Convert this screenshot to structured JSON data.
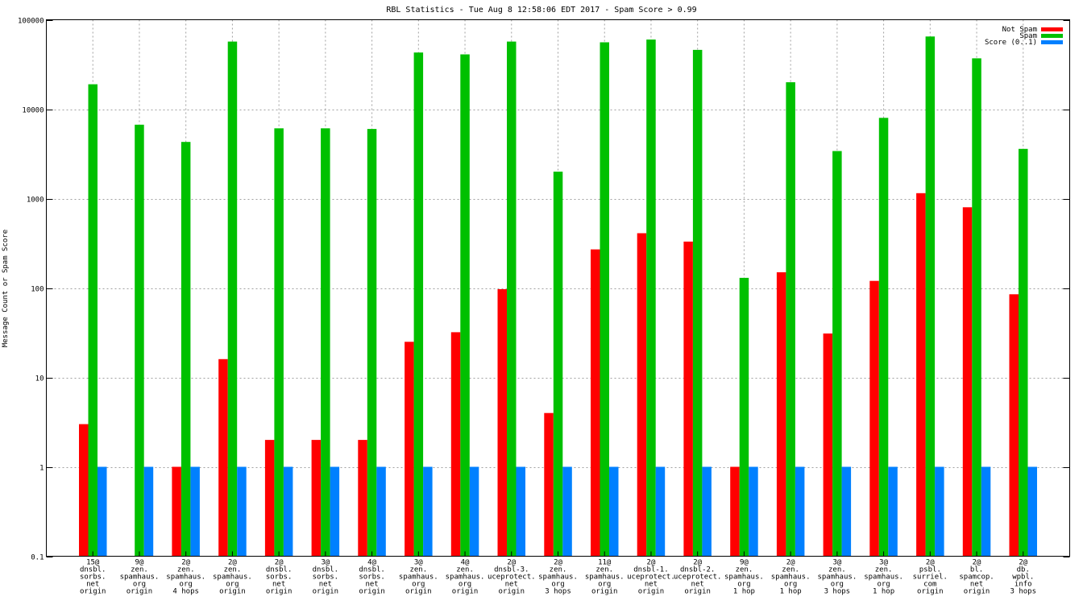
{
  "chart_data": {
    "type": "bar",
    "title": "RBL Statistics - Tue Aug  8 12:58:06 EDT 2017 - Spam Score > 0.99",
    "xlabel": "",
    "ylabel": "Message Count or Spam Score",
    "yscale": "log",
    "ylim": [
      0.1,
      100000
    ],
    "y_ticks": [
      "0.1",
      "1",
      "10",
      "100",
      "1000",
      "10000",
      "100000"
    ],
    "grid": true,
    "legend_position": "top-right",
    "categories": [
      [
        "15@",
        "dnsbl.",
        "sorbs.",
        "net",
        "origin"
      ],
      [
        "9@",
        "zen.",
        "spamhaus.",
        "org",
        "origin"
      ],
      [
        "2@",
        "zen.",
        "spamhaus.",
        "org",
        "4 hops"
      ],
      [
        "2@",
        "zen.",
        "spamhaus.",
        "org",
        "origin"
      ],
      [
        "2@",
        "dnsbl.",
        "sorbs.",
        "net",
        "origin"
      ],
      [
        "3@",
        "dnsbl.",
        "sorbs.",
        "net",
        "origin"
      ],
      [
        "4@",
        "dnsbl.",
        "sorbs.",
        "net",
        "origin"
      ],
      [
        "3@",
        "zen.",
        "spamhaus.",
        "org",
        "origin"
      ],
      [
        "4@",
        "zen.",
        "spamhaus.",
        "org",
        "origin"
      ],
      [
        "2@",
        "dnsbl-3.",
        "uceprotect.",
        "net",
        "origin"
      ],
      [
        "2@",
        "zen.",
        "spamhaus.",
        "org",
        "3 hops"
      ],
      [
        "11@",
        "zen.",
        "spamhaus.",
        "org",
        "origin"
      ],
      [
        "2@",
        "dnsbl-1.",
        "uceprotect.",
        "net",
        "origin"
      ],
      [
        "2@",
        "dnsbl-2.",
        "uceprotect.",
        "net",
        "origin"
      ],
      [
        "9@",
        "zen.",
        "spamhaus.",
        "org",
        "1 hop"
      ],
      [
        "2@",
        "zen.",
        "spamhaus.",
        "org",
        "1 hop"
      ],
      [
        "3@",
        "zen.",
        "spamhaus.",
        "org",
        "3 hops"
      ],
      [
        "3@",
        "zen.",
        "spamhaus.",
        "org",
        "1 hop"
      ],
      [
        "2@",
        "psbl.",
        "surriel.",
        "com",
        "origin"
      ],
      [
        "2@",
        "bl.",
        "spamcop.",
        "net",
        "origin"
      ],
      [
        "2@",
        "db.",
        "wpbl.",
        "info",
        "3 hops"
      ]
    ],
    "series": [
      {
        "name": "Not Spam",
        "color": "#ff0000",
        "values": [
          3,
          null,
          1,
          16,
          2,
          2,
          2,
          25,
          32,
          97,
          4,
          270,
          410,
          330,
          1,
          150,
          31,
          120,
          1150,
          800,
          85
        ]
      },
      {
        "name": "Spam",
        "color": "#00c000",
        "values": [
          19000,
          6700,
          4300,
          57000,
          6100,
          6100,
          6000,
          43000,
          41000,
          57000,
          2000,
          56000,
          60000,
          46000,
          130,
          20000,
          3400,
          8000,
          65000,
          37000,
          3600
        ]
      },
      {
        "name": "Score (0..1)",
        "color": "#0080ff",
        "values": [
          1,
          1,
          1,
          1,
          1,
          1,
          1,
          1,
          1,
          1,
          1,
          1,
          1,
          1,
          1,
          1,
          1,
          1,
          1,
          1,
          1
        ]
      }
    ]
  }
}
